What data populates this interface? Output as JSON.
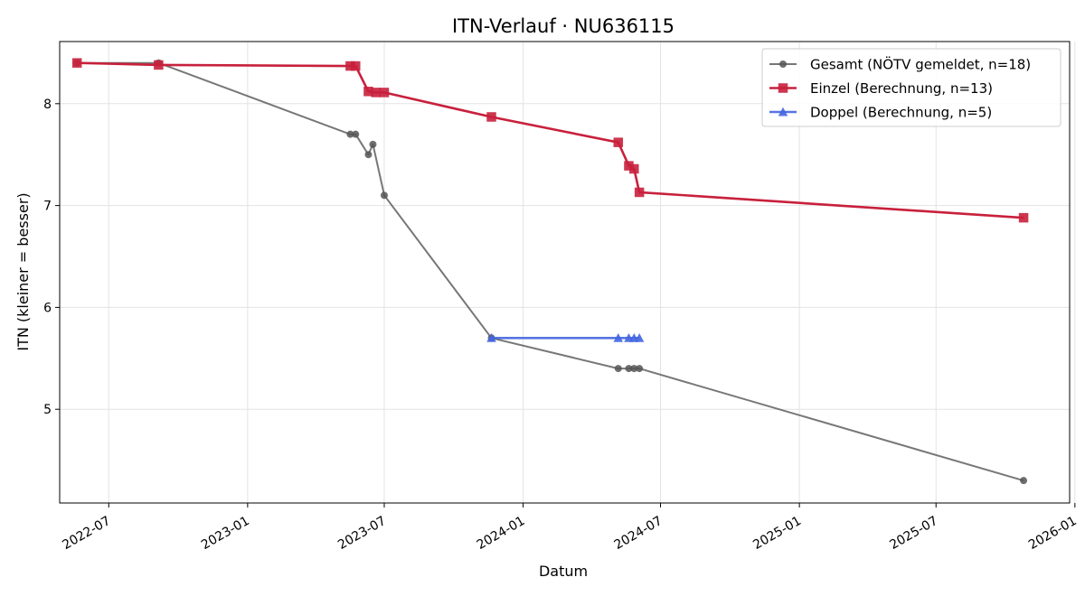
{
  "chart_data": {
    "type": "line",
    "title": "ITN-Verlauf · NU636115",
    "xlabel": "Datum",
    "ylabel": "ITN  (kleiner = besser)",
    "xlim": [
      "2022-04-27",
      "2025-12-25"
    ],
    "ylim": [
      4.08,
      8.61
    ],
    "x_ticks": [
      "2022-07-01",
      "2023-01-01",
      "2023-07-01",
      "2024-01-01",
      "2024-07-01",
      "2025-01-01",
      "2025-07-01",
      "2026-01-01"
    ],
    "x_tick_labels": [
      "2022-07",
      "2023-01",
      "2023-07",
      "2024-01",
      "2024-07",
      "2025-01",
      "2025-07",
      "2026-01"
    ],
    "y_ticks": [
      5,
      6,
      7,
      8
    ],
    "y_tick_labels": [
      "5",
      "6",
      "7",
      "8"
    ],
    "grid": true,
    "legend_position": "top-right",
    "series": [
      {
        "name": "Gesamt (NÖTV gemeldet, n=18)",
        "color": "#555555",
        "marker": "circle",
        "points": [
          {
            "x": "2022-05-20",
            "y": 8.4
          },
          {
            "x": "2022-09-05",
            "y": 8.4
          },
          {
            "x": "2023-05-17",
            "y": 7.7
          },
          {
            "x": "2023-05-24",
            "y": 7.7
          },
          {
            "x": "2023-06-10",
            "y": 7.5
          },
          {
            "x": "2023-06-16",
            "y": 7.6
          },
          {
            "x": "2023-07-01",
            "y": 7.1
          },
          {
            "x": "2023-11-20",
            "y": 5.7
          },
          {
            "x": "2024-05-06",
            "y": 5.4
          },
          {
            "x": "2024-05-20",
            "y": 5.4
          },
          {
            "x": "2024-05-27",
            "y": 5.4
          },
          {
            "x": "2024-06-03",
            "y": 5.4
          },
          {
            "x": "2025-10-25",
            "y": 4.3
          }
        ]
      },
      {
        "name": "Einzel (Berechnung, n=13)",
        "color": "#c8203c",
        "marker": "square",
        "points": [
          {
            "x": "2022-05-20",
            "y": 8.4
          },
          {
            "x": "2022-09-05",
            "y": 8.38
          },
          {
            "x": "2023-05-17",
            "y": 8.37
          },
          {
            "x": "2023-05-24",
            "y": 8.37
          },
          {
            "x": "2023-06-10",
            "y": 8.12
          },
          {
            "x": "2023-06-20",
            "y": 8.11
          },
          {
            "x": "2023-07-01",
            "y": 8.11
          },
          {
            "x": "2023-11-20",
            "y": 7.87
          },
          {
            "x": "2024-05-06",
            "y": 7.62
          },
          {
            "x": "2024-05-20",
            "y": 7.39
          },
          {
            "x": "2024-05-27",
            "y": 7.36
          },
          {
            "x": "2024-06-03",
            "y": 7.13
          },
          {
            "x": "2025-10-25",
            "y": 6.88
          }
        ]
      },
      {
        "name": "Doppel (Berechnung, n=5)",
        "color": "#4466e0",
        "marker": "triangle",
        "points": [
          {
            "x": "2023-11-20",
            "y": 5.7
          },
          {
            "x": "2024-05-06",
            "y": 5.7
          },
          {
            "x": "2024-05-20",
            "y": 5.7
          },
          {
            "x": "2024-05-27",
            "y": 5.7
          },
          {
            "x": "2024-06-03",
            "y": 5.7
          }
        ]
      }
    ]
  }
}
